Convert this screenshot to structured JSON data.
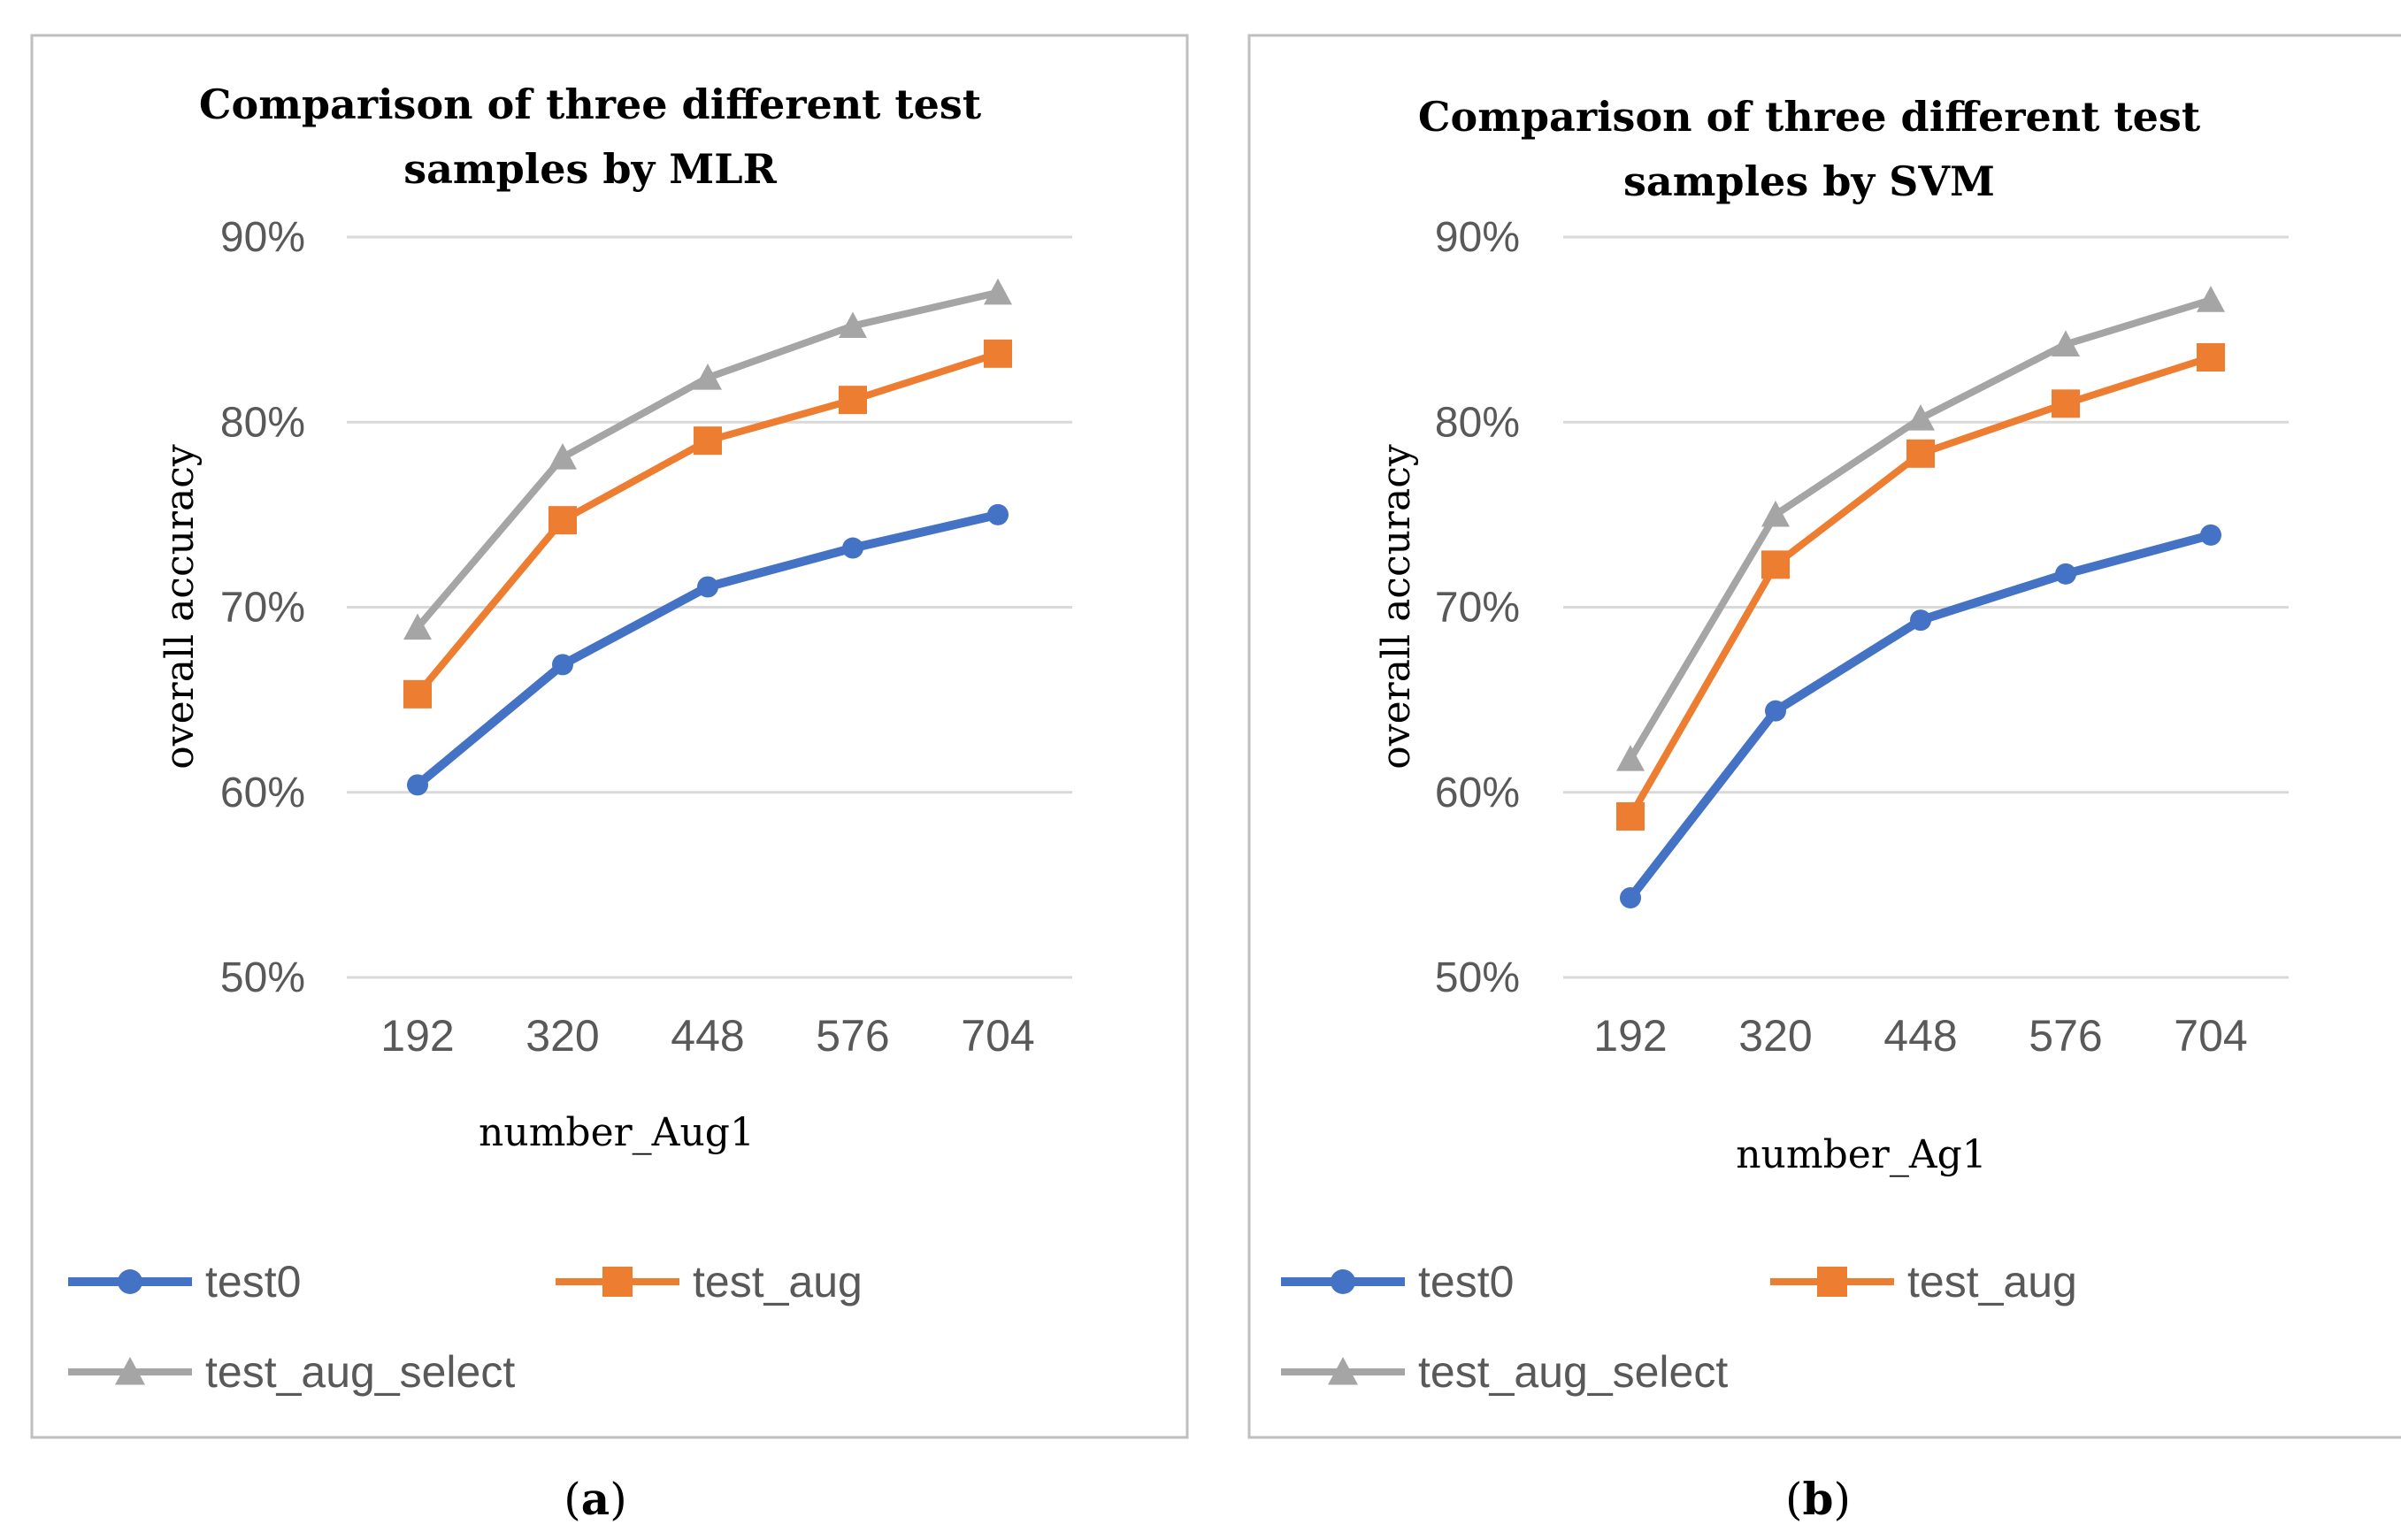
{
  "colors": {
    "test0": "#4472C4",
    "test_aug": "#ED7D31",
    "test_aug_select": "#A5A5A5",
    "gridline": "#D9D9D9",
    "panel_border": "#BFBFBF",
    "tick_text": "#595959",
    "label_text": "#000000"
  },
  "chart_data": [
    {
      "type": "line",
      "panel_label": "(a)",
      "panel_letter": "a",
      "title_lines": [
        "Comparison of three different test",
        "samples by MLR"
      ],
      "xlabel": "number_Aug1",
      "ylabel": "overall accuracy",
      "categories": [
        "192",
        "320",
        "448",
        "576",
        "704"
      ],
      "yticks": [
        "50%",
        "60%",
        "70%",
        "80%",
        "90%"
      ],
      "ytick_values": [
        50,
        60,
        70,
        80,
        90
      ],
      "ylim": [
        50,
        90
      ],
      "grid": true,
      "legend_position": "bottom",
      "series": [
        {
          "name": "test0",
          "marker": "circle",
          "values": [
            60.4,
            66.9,
            71.1,
            73.2,
            75.0
          ]
        },
        {
          "name": "test_aug",
          "marker": "square",
          "values": [
            65.3,
            74.7,
            79.0,
            81.2,
            83.7
          ]
        },
        {
          "name": "test_aug_select",
          "marker": "triangle",
          "values": [
            68.9,
            78.1,
            82.4,
            85.2,
            87.0
          ]
        }
      ]
    },
    {
      "type": "line",
      "panel_label": "(b)",
      "panel_letter": "b",
      "title_lines": [
        "Comparison of three different test",
        "samples by SVM"
      ],
      "xlabel": "number_Ag1",
      "ylabel": "overall accuracy",
      "categories": [
        "192",
        "320",
        "448",
        "576",
        "704"
      ],
      "yticks": [
        "50%",
        "60%",
        "70%",
        "80%",
        "90%"
      ],
      "ytick_values": [
        50,
        60,
        70,
        80,
        90
      ],
      "ylim": [
        50,
        90
      ],
      "grid": true,
      "legend_position": "bottom",
      "series": [
        {
          "name": "test0",
          "marker": "circle",
          "values": [
            54.3,
            64.4,
            69.3,
            71.8,
            73.9
          ]
        },
        {
          "name": "test_aug",
          "marker": "square",
          "values": [
            58.7,
            72.3,
            78.3,
            81.0,
            83.5
          ]
        },
        {
          "name": "test_aug_select",
          "marker": "triangle",
          "values": [
            61.8,
            75.0,
            80.2,
            84.2,
            86.6
          ]
        }
      ]
    }
  ]
}
